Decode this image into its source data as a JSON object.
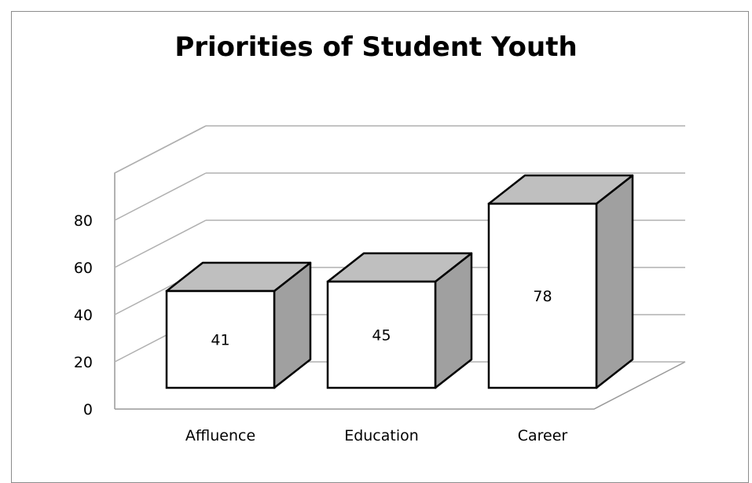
{
  "chart_data": {
    "type": "bar",
    "title": "Priorities of Student Youth",
    "categories": [
      "Affluence",
      "Education",
      "Career"
    ],
    "values": [
      41,
      45,
      78
    ],
    "data_labels": [
      "41",
      "45",
      "78"
    ],
    "y_ticks": [
      "0",
      "20",
      "40",
      "60",
      "80"
    ],
    "ylim": [
      0,
      100
    ],
    "xlabel": "",
    "ylabel": "",
    "grid": true,
    "style": "3d-column",
    "colors": {
      "bar_front": "#ffffff",
      "bar_top": "#bfbfbf",
      "bar_side": "#a0a0a0",
      "bar_outline": "#000000",
      "gridline": "#b0b0b0",
      "axis": "#999999"
    }
  }
}
